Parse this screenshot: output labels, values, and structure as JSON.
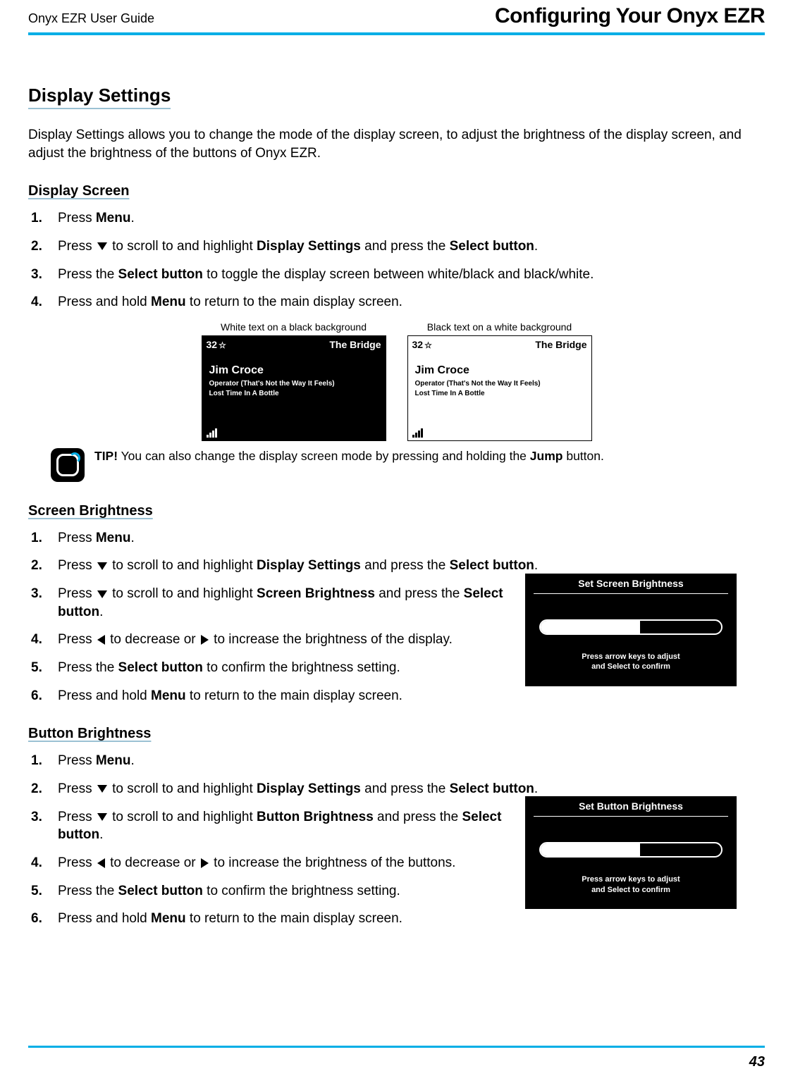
{
  "header": {
    "guide": "Onyx EZR User Guide",
    "chapter": "Configuring Your Onyx EZR"
  },
  "h2": "Display Settings",
  "intro": "Display Settings allows you to change the mode of the display screen, to adjust the brightness of the display screen, and adjust the brightness of the buttons of Onyx EZR.",
  "displayScreen": {
    "title": "Display Screen",
    "steps": {
      "s1a": "Press ",
      "s1b": "Menu",
      "s1c": ".",
      "s2a": "Press ",
      "s2b": " to scroll to and highlight ",
      "s2c": "Display Settings",
      "s2d": " and press the ",
      "s2e": "Select button",
      "s2f": ".",
      "s3a": "Press the ",
      "s3b": "Select button",
      "s3c": " to toggle the display screen between white/black and black/white.",
      "s4a": "Press and hold ",
      "s4b": "Menu",
      "s4c": " to return to the main display screen."
    },
    "caption_dark": "White text on a black background",
    "caption_light": "Black text on a white background",
    "lcd": {
      "channel": "32",
      "station": "The Bridge",
      "artist": "Jim Croce",
      "line1": "Operator (That's Not the Way It Feels)",
      "line2": "Lost Time In A Bottle"
    },
    "tip_a": "TIP!",
    "tip_b": " You can also change the display screen mode by pressing and holding the ",
    "tip_c": "Jump",
    "tip_d": " button."
  },
  "screenBrightness": {
    "title": "Screen Brightness",
    "steps": {
      "s1a": "Press ",
      "s1b": "Menu",
      "s1c": ".",
      "s2a": "Press ",
      "s2b": " to scroll to and highlight ",
      "s2c": "Display Settings",
      "s2d": " and press the ",
      "s2e": "Select button",
      "s2f": ".",
      "s3a": "Press ",
      "s3b": " to scroll to and highlight ",
      "s3c": "Screen Brightness",
      "s3d": " and press the ",
      "s3e": "Select button",
      "s3f": ".",
      "s4a": "Press ",
      "s4b": " to decrease or ",
      "s4c": " to increase the brightness of the display.",
      "s5a": "Press the ",
      "s5b": "Select button",
      "s5c": " to confirm the brightness setting.",
      "s6a": "Press and hold ",
      "s6b": "Menu",
      "s6c": " to return to the main display screen."
    },
    "lcd": {
      "title": "Set Screen Brightness",
      "hint1": "Press arrow keys to adjust",
      "hint2": "and Select to confirm",
      "fill_pct": 55
    }
  },
  "buttonBrightness": {
    "title": "Button Brightness",
    "steps": {
      "s1a": "Press ",
      "s1b": "Menu",
      "s1c": ".",
      "s2a": "Press ",
      "s2b": " to scroll to and highlight ",
      "s2c": "Display Settings",
      "s2d": " and press the ",
      "s2e": "Select button",
      "s2f": ".",
      "s3a": "Press ",
      "s3b": " to scroll to and highlight ",
      "s3c": "Button Brightness",
      "s3d": " and press the ",
      "s3e": "Select button",
      "s3f": ".",
      "s4a": "Press ",
      "s4b": " to decrease or ",
      "s4c": " to increase the brightness of the buttons.",
      "s5a": "Press the ",
      "s5b": "Select button",
      "s5c": " to confirm the brightness setting.",
      "s6a": "Press and hold ",
      "s6b": "Menu",
      "s6c": " to return to the main display screen."
    },
    "lcd": {
      "title": "Set Button Brightness",
      "hint1": "Press arrow keys to adjust",
      "hint2": "and Select to confirm",
      "fill_pct": 55
    }
  },
  "page_number": "43",
  "colors": {
    "accent": "#00aee6"
  }
}
